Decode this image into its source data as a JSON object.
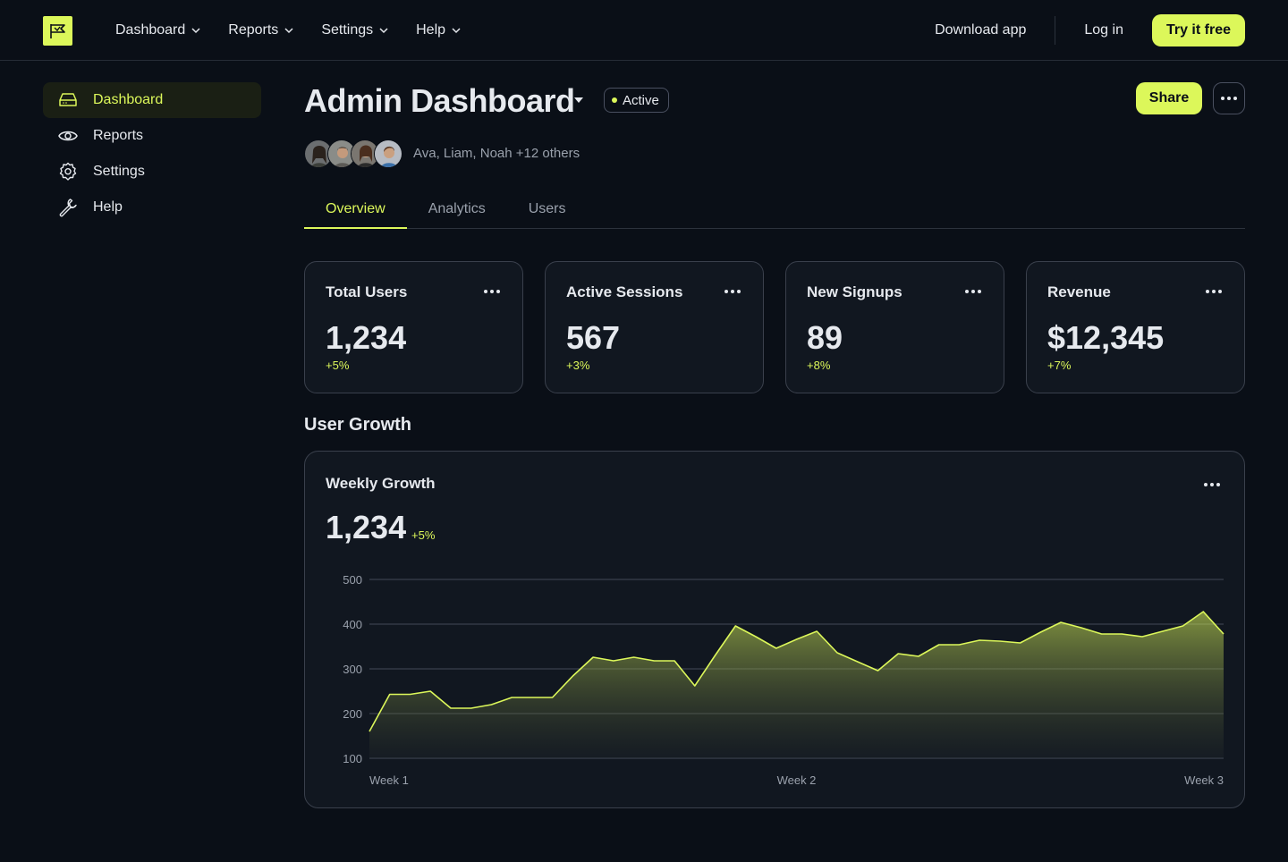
{
  "nav": {
    "items": [
      {
        "label": "Dashboard"
      },
      {
        "label": "Reports"
      },
      {
        "label": "Settings"
      },
      {
        "label": "Help"
      }
    ],
    "download_label": "Download app",
    "login_label": "Log in",
    "cta_label": "Try it free"
  },
  "sidebar": {
    "items": [
      {
        "label": "Dashboard",
        "icon": "drive-icon",
        "active": true
      },
      {
        "label": "Reports",
        "icon": "eye-icon",
        "active": false
      },
      {
        "label": "Settings",
        "icon": "gear-icon",
        "active": false
      },
      {
        "label": "Help",
        "icon": "wrench-icon",
        "active": false
      }
    ]
  },
  "header": {
    "title": "Admin Dashboard",
    "status": "Active",
    "share_label": "Share",
    "members_text": "Ava, Liam, Noah +12 others"
  },
  "tabs": [
    {
      "label": "Overview",
      "active": true
    },
    {
      "label": "Analytics",
      "active": false
    },
    {
      "label": "Users",
      "active": false
    }
  ],
  "stats": [
    {
      "title": "Total Users",
      "value": "1,234",
      "delta": "+5%"
    },
    {
      "title": "Active Sessions",
      "value": "567",
      "delta": "+3%"
    },
    {
      "title": "New Signups",
      "value": "89",
      "delta": "+8%"
    },
    {
      "title": "Revenue",
      "value": "$12,345",
      "delta": "+7%"
    }
  ],
  "section_title": "User Growth",
  "chart_card": {
    "title": "Weekly Growth",
    "value": "1,234",
    "delta": "+5%"
  },
  "colors": {
    "accent": "#dcf75a",
    "background": "#0a0f17",
    "card": "#111720"
  },
  "chart_data": {
    "type": "area",
    "title": "Weekly Growth",
    "xlabel": "",
    "ylabel": "",
    "ylim": [
      100,
      500
    ],
    "yticks": [
      500,
      400,
      300,
      200,
      100
    ],
    "xticks": [
      "Week 1",
      "Week 2",
      "Week 3"
    ],
    "grid": true,
    "series": [
      {
        "values": [
          160,
          243,
          243,
          250,
          212,
          212,
          220,
          236,
          236,
          236,
          284,
          326,
          318,
          326,
          318,
          318,
          262,
          330,
          396,
          372,
          346,
          366,
          384,
          336,
          316,
          296,
          334,
          328,
          354,
          354,
          364,
          362,
          358,
          382,
          404,
          392,
          378,
          378,
          372,
          384,
          396,
          428,
          378
        ]
      }
    ]
  }
}
